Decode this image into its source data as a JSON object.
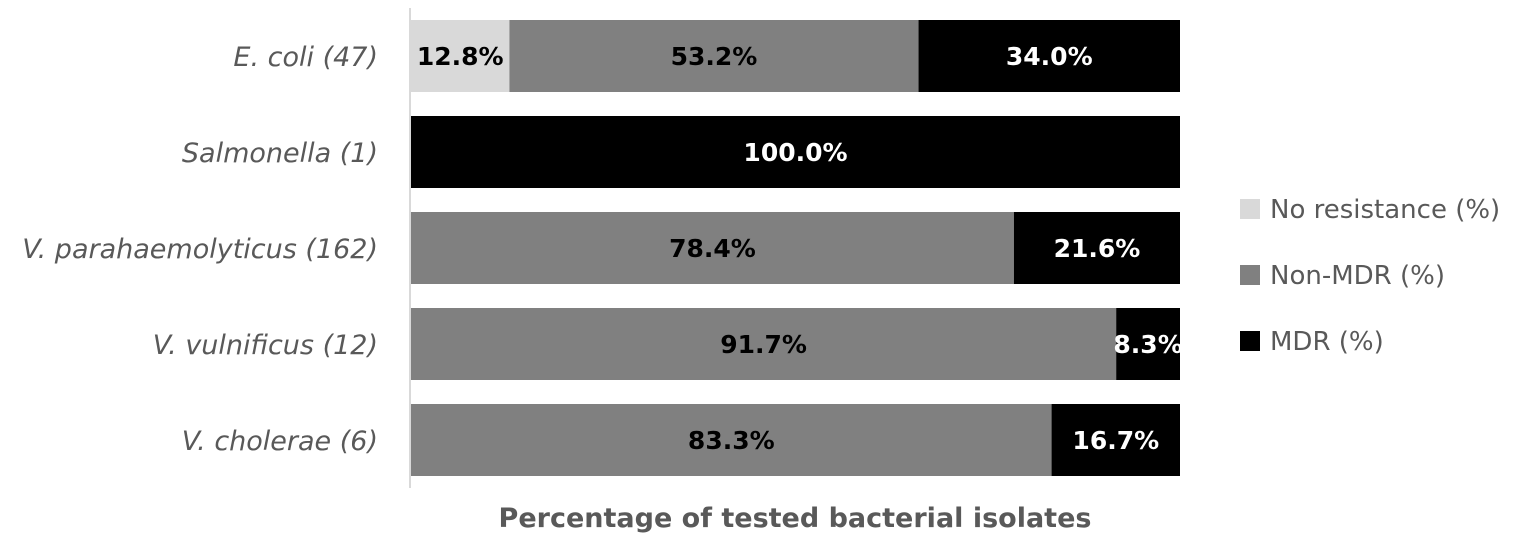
{
  "chart_data": {
    "type": "bar",
    "orientation": "horizontal",
    "stacked": true,
    "categories": [
      "E. coli (47)",
      "Salmonella (1)",
      "V. parahaemolyticus (162)",
      "V. vulnificus (12)",
      "V. cholerae (6)"
    ],
    "series": [
      {
        "name": "No resistance (%)",
        "color": "#d9d9d9",
        "label_color": "#000000",
        "values": [
          12.8,
          0,
          0,
          0,
          0
        ]
      },
      {
        "name": "Non-MDR (%)",
        "color": "#808080",
        "label_color": "#000000",
        "values": [
          53.2,
          0,
          78.4,
          91.7,
          83.3
        ]
      },
      {
        "name": "MDR (%)",
        "color": "#000000",
        "label_color": "#ffffff",
        "values": [
          34.0,
          100.0,
          21.6,
          8.3,
          16.7
        ]
      }
    ],
    "data_labels": [
      [
        "12.8%",
        "",
        "",
        "",
        ""
      ],
      [
        "53.2%",
        "",
        "78.4%",
        "91.7%",
        "83.3%"
      ],
      [
        "34.0%",
        "100.0%",
        "21.6%",
        "8.3%",
        "16.7%"
      ]
    ],
    "xlabel": "Percentage of tested bacterial isolates",
    "xlim": [
      0,
      100
    ],
    "legend_position": "right",
    "grid": false
  }
}
